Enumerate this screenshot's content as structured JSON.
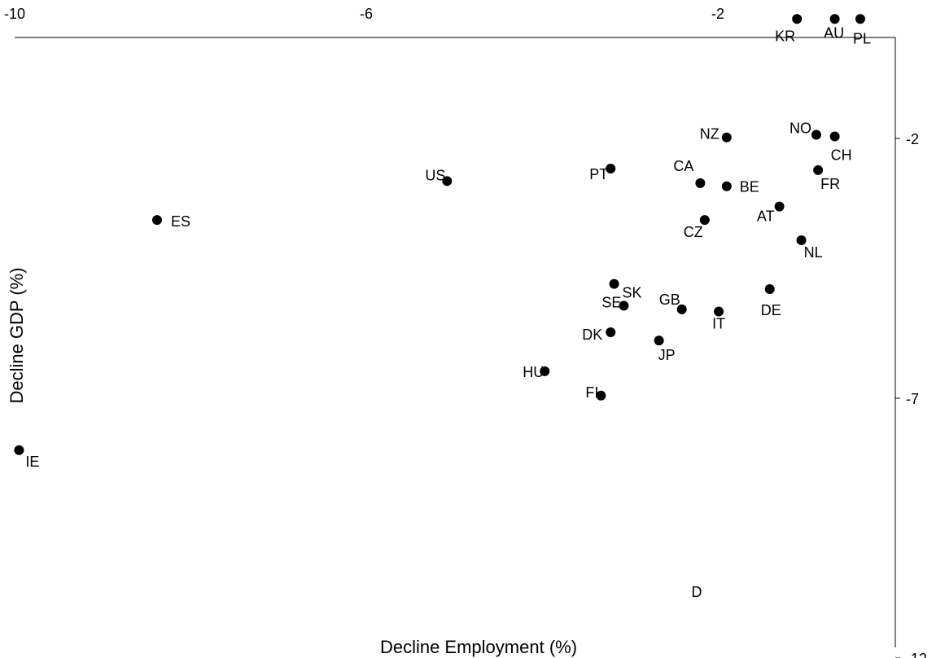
{
  "chart_data": {
    "type": "scatter",
    "title": "",
    "xlabel": "Decline Employment (%)",
    "ylabel": "Decline GDP (%)",
    "xlim": [
      -10,
      0.2
    ],
    "ylim": [
      -12,
      0.3
    ],
    "x_ticks": [
      -10,
      -6,
      -2
    ],
    "y_ticks": [
      -2,
      -7,
      -12
    ],
    "x_axis_position": "top",
    "y_axis_position": "right",
    "grid": false,
    "legend": "none",
    "marker_color": "#000000",
    "points": [
      {
        "label": "KR",
        "x": -1.1,
        "y": 0.3
      },
      {
        "label": "AU",
        "x": -0.67,
        "y": 0.3
      },
      {
        "label": "PL",
        "x": -0.38,
        "y": 0.3
      },
      {
        "label": "NZ",
        "x": -1.9,
        "y": -1.98
      },
      {
        "label": "NO",
        "x": -0.88,
        "y": -1.93
      },
      {
        "label": "CH",
        "x": -0.67,
        "y": -1.96
      },
      {
        "label": "PT",
        "x": -3.22,
        "y": -2.58
      },
      {
        "label": "CA",
        "x": -2.2,
        "y": -2.86
      },
      {
        "label": "FR",
        "x": -0.86,
        "y": -2.61
      },
      {
        "label": "US",
        "x": -5.08,
        "y": -2.82
      },
      {
        "label": "BE",
        "x": -1.9,
        "y": -2.92
      },
      {
        "label": "ES",
        "x": -8.38,
        "y": -3.57
      },
      {
        "label": "AT",
        "x": -1.3,
        "y": -3.31
      },
      {
        "label": "CZ",
        "x": -2.15,
        "y": -3.57
      },
      {
        "label": "NL",
        "x": -1.05,
        "y": -3.96
      },
      {
        "label": "SK",
        "x": -3.18,
        "y": -4.8
      },
      {
        "label": "DE",
        "x": -1.41,
        "y": -4.9
      },
      {
        "label": "SE",
        "x": -3.07,
        "y": -5.22
      },
      {
        "label": "GB",
        "x": -2.41,
        "y": -5.29
      },
      {
        "label": "IT",
        "x": -1.99,
        "y": -5.33
      },
      {
        "label": "DK",
        "x": -3.22,
        "y": -5.73
      },
      {
        "label": "JP",
        "x": -2.67,
        "y": -5.89
      },
      {
        "label": "HU",
        "x": -3.97,
        "y": -6.48
      },
      {
        "label": "FI",
        "x": -3.33,
        "y": -6.95
      },
      {
        "label": "IE",
        "x": -9.95,
        "y": -8.0
      },
      {
        "label": "D",
        "x": null,
        "y": null
      }
    ]
  }
}
